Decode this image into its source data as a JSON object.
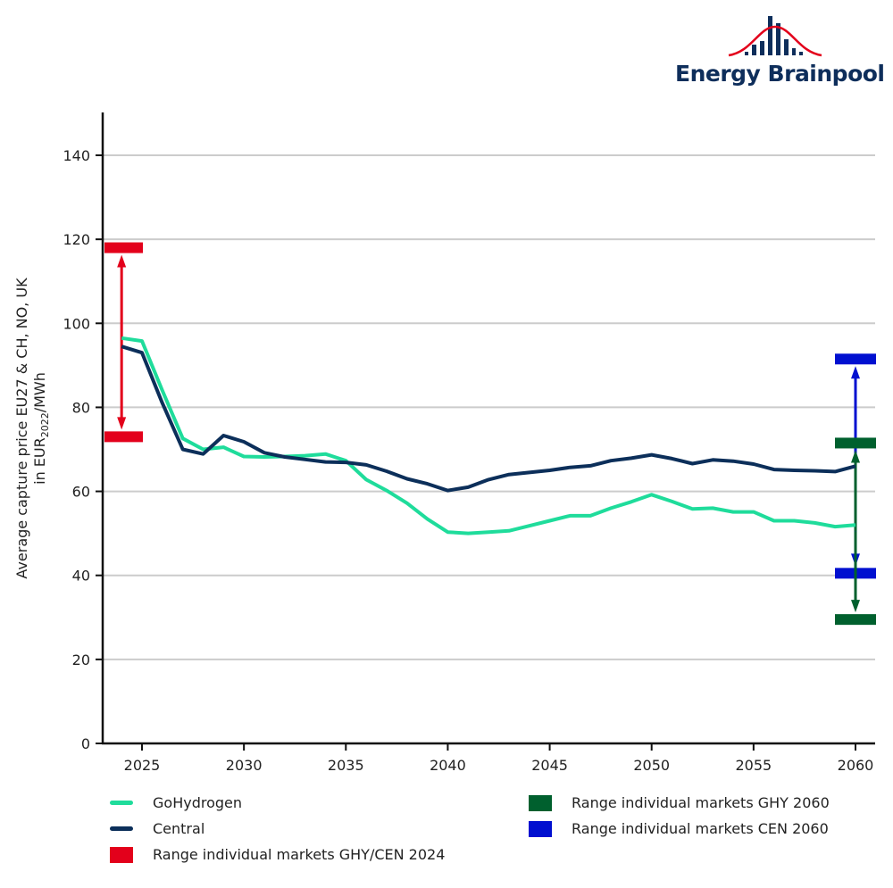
{
  "logo": {
    "text": "Energy Brainpool"
  },
  "colors": {
    "gohydrogen": "#1fdc9b",
    "central": "#0c2f5a",
    "range_2024": "#e3001b",
    "range_ghy_2060": "#00602e",
    "range_cen_2060": "#0010d0",
    "grid": "#cccccc",
    "axis": "#111111"
  },
  "chart_data": {
    "type": "line",
    "title": "",
    "xlabel": "",
    "ylabel_line1": "Average capture price EU27 & CH, NO, UK",
    "ylabel_line2_prefix": "in EUR",
    "ylabel_line2_sub": "2022",
    "ylabel_line2_suffix": "/MWh",
    "xlim": [
      2023,
      2061
    ],
    "ylim": [
      0,
      150
    ],
    "grid": true,
    "x_ticks": [
      2025,
      2030,
      2035,
      2040,
      2045,
      2050,
      2055,
      2060
    ],
    "x_tick_labels": [
      "2025",
      "2030",
      "2035",
      "2040",
      "2045",
      "2050",
      "2055",
      "2060"
    ],
    "y_ticks": [
      0,
      20,
      40,
      60,
      80,
      100,
      120,
      140
    ],
    "y_tick_labels": [
      "0",
      "20",
      "40",
      "60",
      "80",
      "100",
      "120",
      "140"
    ],
    "x": [
      2024,
      2025,
      2026,
      2027,
      2028,
      2029,
      2030,
      2031,
      2032,
      2033,
      2034,
      2035,
      2036,
      2037,
      2038,
      2039,
      2040,
      2041,
      2042,
      2043,
      2044,
      2045,
      2046,
      2047,
      2048,
      2049,
      2050,
      2051,
      2052,
      2053,
      2054,
      2055,
      2056,
      2057,
      2058,
      2059,
      2060
    ],
    "series": [
      {
        "name": "GoHydrogen",
        "key": "gohydrogen",
        "values": [
          96.5,
          95.8,
          84.0,
          72.6,
          70.0,
          70.5,
          68.3,
          68.2,
          68.3,
          68.5,
          68.9,
          67.3,
          62.8,
          60.2,
          57.2,
          53.4,
          50.3,
          50.0,
          50.3,
          50.6,
          51.8,
          53.0,
          54.2,
          54.2,
          56.0,
          57.5,
          59.2,
          57.6,
          55.8,
          56.0,
          55.1,
          55.1,
          53.0,
          53.0,
          52.5,
          51.6,
          52.0
        ]
      },
      {
        "name": "Central",
        "key": "central",
        "values": [
          94.5,
          93.0,
          81.0,
          70.0,
          68.9,
          73.3,
          71.8,
          69.2,
          68.2,
          67.6,
          67.0,
          66.9,
          66.3,
          64.8,
          63.0,
          61.8,
          60.2,
          61.0,
          62.8,
          64.0,
          64.5,
          65.0,
          65.7,
          66.1,
          67.3,
          67.9,
          68.7,
          67.8,
          66.6,
          67.5,
          67.2,
          66.5,
          65.2,
          65.0,
          64.9,
          64.7,
          66.0
        ]
      }
    ],
    "ranges": [
      {
        "name": "Range individual markets GHY/CEN 2024",
        "key": "range_2024",
        "x": 2024,
        "min": 73.0,
        "max": 118.0
      },
      {
        "name": "Range individual markets CEN 2060",
        "key": "range_cen_2060",
        "x": 2060,
        "min": 40.5,
        "max": 91.5
      },
      {
        "name": "Range individual markets GHY 2060",
        "key": "range_ghy_2060",
        "x": 2060,
        "min": 29.5,
        "max": 71.5
      }
    ],
    "legend": {
      "placement": "bottom",
      "items": [
        {
          "label": "GoHydrogen",
          "type": "line",
          "key": "gohydrogen"
        },
        {
          "label": "Central",
          "type": "line",
          "key": "central"
        },
        {
          "label": "Range individual markets GHY/CEN 2024",
          "type": "box",
          "key": "range_2024"
        },
        {
          "label": "Range individual markets GHY 2060",
          "type": "box",
          "key": "range_ghy_2060"
        },
        {
          "label": "Range individual markets CEN 2060",
          "type": "box",
          "key": "range_cen_2060"
        }
      ]
    }
  }
}
